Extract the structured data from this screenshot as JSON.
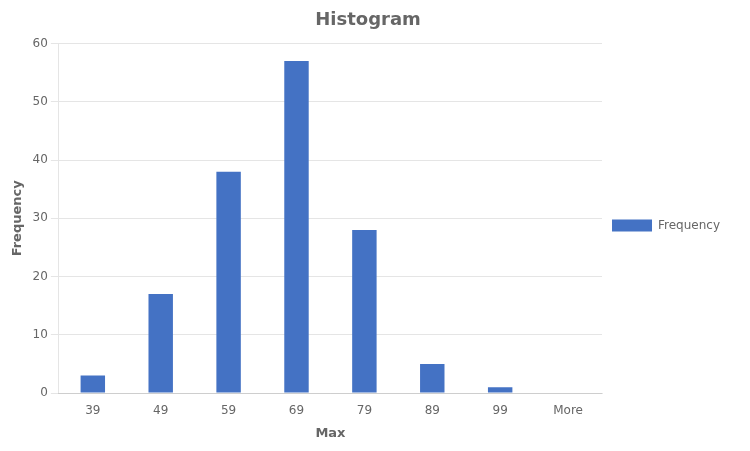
{
  "chart_data": {
    "type": "bar",
    "title": "Histogram",
    "xlabel": "Max",
    "ylabel": "Frequency",
    "categories": [
      "39",
      "49",
      "59",
      "69",
      "79",
      "89",
      "99",
      "More"
    ],
    "series": [
      {
        "name": "Frequency",
        "color": "#4472C4",
        "values": [
          3,
          17,
          38,
          57,
          28,
          5,
          1,
          0
        ]
      }
    ],
    "ylim": [
      0,
      60
    ],
    "yticks": [
      0,
      10,
      20,
      30,
      40,
      50,
      60
    ],
    "grid": true,
    "legend": "right"
  }
}
